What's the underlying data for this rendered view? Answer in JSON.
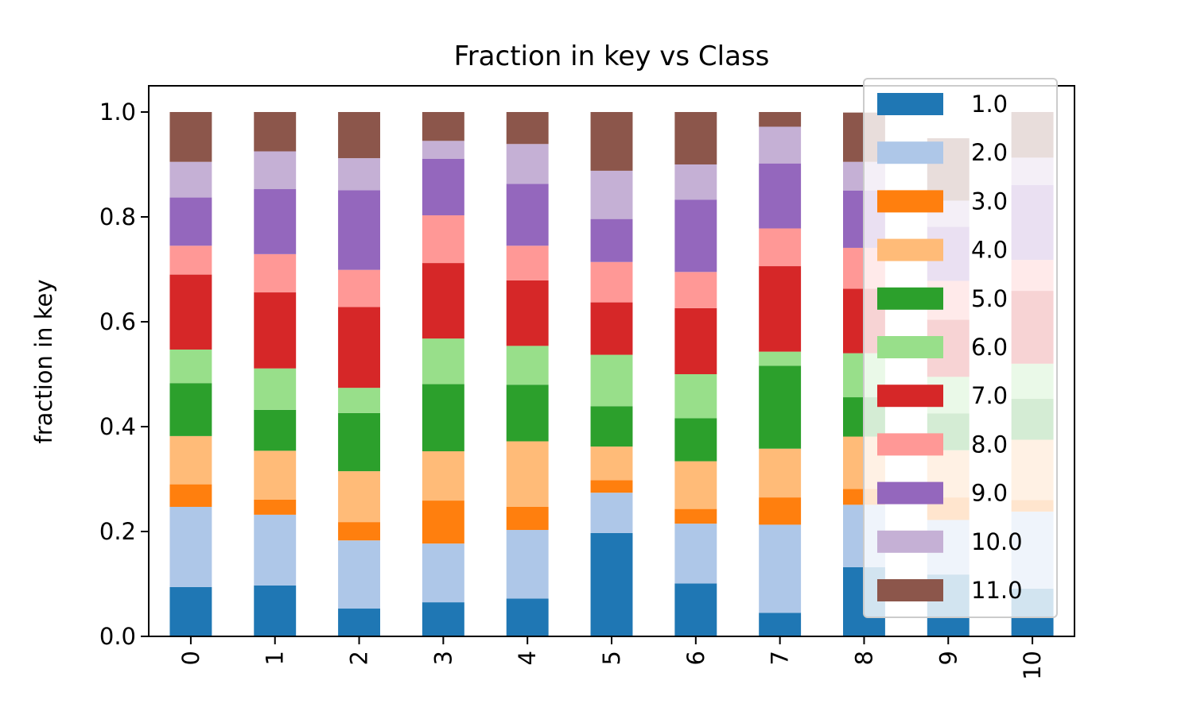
{
  "chart_data": {
    "type": "bar",
    "stacked": true,
    "title": "Fraction in key vs Class",
    "xlabel": "",
    "ylabel": "fraction in key",
    "categories": [
      "0",
      "1",
      "2",
      "3",
      "4",
      "5",
      "6",
      "7",
      "8",
      "9",
      "10"
    ],
    "ylim": [
      0,
      1.05
    ],
    "yticks": [
      "0.0",
      "0.2",
      "0.4",
      "0.6",
      "0.8",
      "1.0"
    ],
    "legend_position": "top-right",
    "grid": false,
    "series": [
      {
        "name": "1.0",
        "color": "#1f77b4",
        "values": [
          0.094,
          0.097,
          0.053,
          0.065,
          0.072,
          0.197,
          0.101,
          0.045,
          0.132,
          0.118,
          0.091
        ]
      },
      {
        "name": "2.0",
        "color": "#aec7e8",
        "values": [
          0.153,
          0.135,
          0.13,
          0.112,
          0.131,
          0.077,
          0.114,
          0.168,
          0.119,
          0.104,
          0.147
        ]
      },
      {
        "name": "3.0",
        "color": "#ff7f0e",
        "values": [
          0.043,
          0.029,
          0.035,
          0.082,
          0.044,
          0.024,
          0.028,
          0.052,
          0.03,
          0.043,
          0.022
        ]
      },
      {
        "name": "4.0",
        "color": "#ffbb78",
        "values": [
          0.092,
          0.093,
          0.097,
          0.094,
          0.125,
          0.064,
          0.091,
          0.093,
          0.1,
          0.09,
          0.115
        ]
      },
      {
        "name": "5.0",
        "color": "#2ca02c",
        "values": [
          0.101,
          0.078,
          0.111,
          0.128,
          0.108,
          0.077,
          0.082,
          0.158,
          0.075,
          0.07,
          0.078
        ]
      },
      {
        "name": "6.0",
        "color": "#98df8a",
        "values": [
          0.064,
          0.079,
          0.048,
          0.087,
          0.074,
          0.098,
          0.084,
          0.027,
          0.084,
          0.07,
          0.067
        ]
      },
      {
        "name": "7.0",
        "color": "#d62728",
        "values": [
          0.143,
          0.145,
          0.154,
          0.144,
          0.125,
          0.1,
          0.126,
          0.163,
          0.123,
          0.109,
          0.139
        ]
      },
      {
        "name": "8.0",
        "color": "#ff9896",
        "values": [
          0.055,
          0.073,
          0.071,
          0.091,
          0.066,
          0.077,
          0.069,
          0.072,
          0.078,
          0.074,
          0.059
        ]
      },
      {
        "name": "9.0",
        "color": "#9467bd",
        "values": [
          0.092,
          0.124,
          0.152,
          0.108,
          0.118,
          0.082,
          0.138,
          0.124,
          0.109,
          0.103,
          0.143
        ]
      },
      {
        "name": "10.0",
        "color": "#c5b0d5",
        "values": [
          0.068,
          0.072,
          0.061,
          0.034,
          0.076,
          0.092,
          0.067,
          0.07,
          0.055,
          0.05,
          0.052
        ]
      },
      {
        "name": "11.0",
        "color": "#8c564b",
        "values": [
          0.095,
          0.075,
          0.088,
          0.055,
          0.061,
          0.112,
          0.1,
          0.028,
          0.094,
          0.119,
          0.087
        ]
      }
    ]
  }
}
